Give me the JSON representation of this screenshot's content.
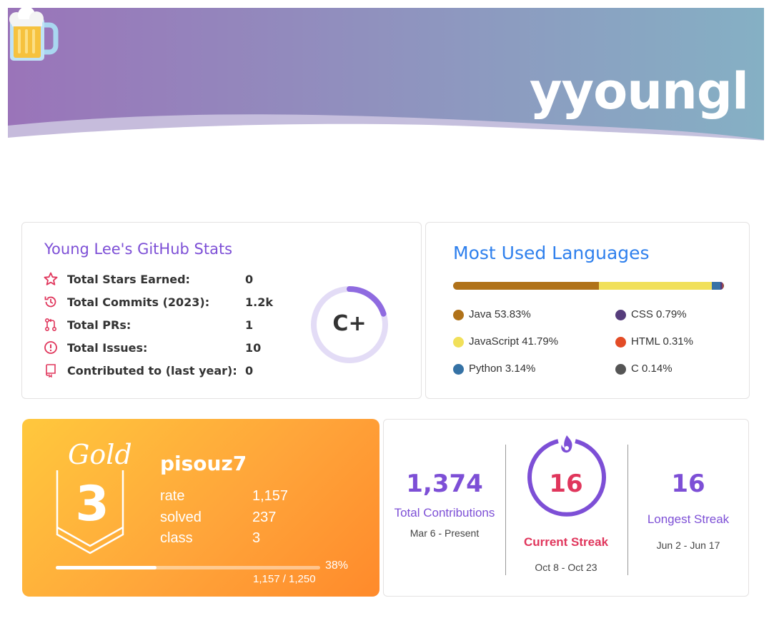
{
  "header": {
    "title": "yyoungl",
    "icon": "beer-mug-icon",
    "gradient": [
      "#9a74b9",
      "#85b0c4"
    ]
  },
  "github_stats": {
    "title": "Young Lee's GitHub Stats",
    "rows": [
      {
        "icon": "star-icon",
        "label": "Total Stars Earned:",
        "value": "0"
      },
      {
        "icon": "history-icon",
        "label": "Total Commits (2023):",
        "value": "1.2k"
      },
      {
        "icon": "pull-request-icon",
        "label": "Total PRs:",
        "value": "1"
      },
      {
        "icon": "issue-icon",
        "label": "Total Issues:",
        "value": "10"
      },
      {
        "icon": "repo-icon",
        "label": "Contributed to (last year):",
        "value": "0"
      }
    ],
    "rank": "C+",
    "rank_progress": 0.2,
    "accent": "#7d4fd6",
    "icon_color": "#e0365c"
  },
  "languages": {
    "title": "Most Used Languages",
    "items": [
      {
        "name": "Java 53.83%",
        "percent": 53.83,
        "color": "#b07219"
      },
      {
        "name": "CSS 0.79%",
        "percent": 0.79,
        "color": "#563d7c"
      },
      {
        "name": "JavaScript 41.79%",
        "percent": 41.79,
        "color": "#f1e05a"
      },
      {
        "name": "HTML 0.31%",
        "percent": 0.31,
        "color": "#e34c26"
      },
      {
        "name": "Python 3.14%",
        "percent": 3.14,
        "color": "#3572a5"
      },
      {
        "name": "C 0.14%",
        "percent": 0.14,
        "color": "#555555"
      }
    ]
  },
  "solved": {
    "tier_name": "Gold",
    "tier_number": "3",
    "handle": "pisouz7",
    "rows": [
      {
        "label": "rate",
        "value": "1,157"
      },
      {
        "label": "solved",
        "value": "237"
      },
      {
        "label": "class",
        "value": "3"
      }
    ],
    "progress_percent_label": "38%",
    "progress_fraction": 0.38,
    "progress_ratio": "1,157 / 1,250"
  },
  "streak": {
    "total": {
      "value": "1,374",
      "label": "Total Contributions",
      "date": "Mar 6 - Present"
    },
    "current": {
      "value": "16",
      "label": "Current Streak",
      "date": "Oct 8 - Oct 23"
    },
    "longest": {
      "value": "16",
      "label": "Longest Streak",
      "date": "Jun 2 - Jun 17"
    },
    "ring_color": "#7d4fd6",
    "current_color": "#e0365c",
    "fire_icon": "fire-icon"
  }
}
